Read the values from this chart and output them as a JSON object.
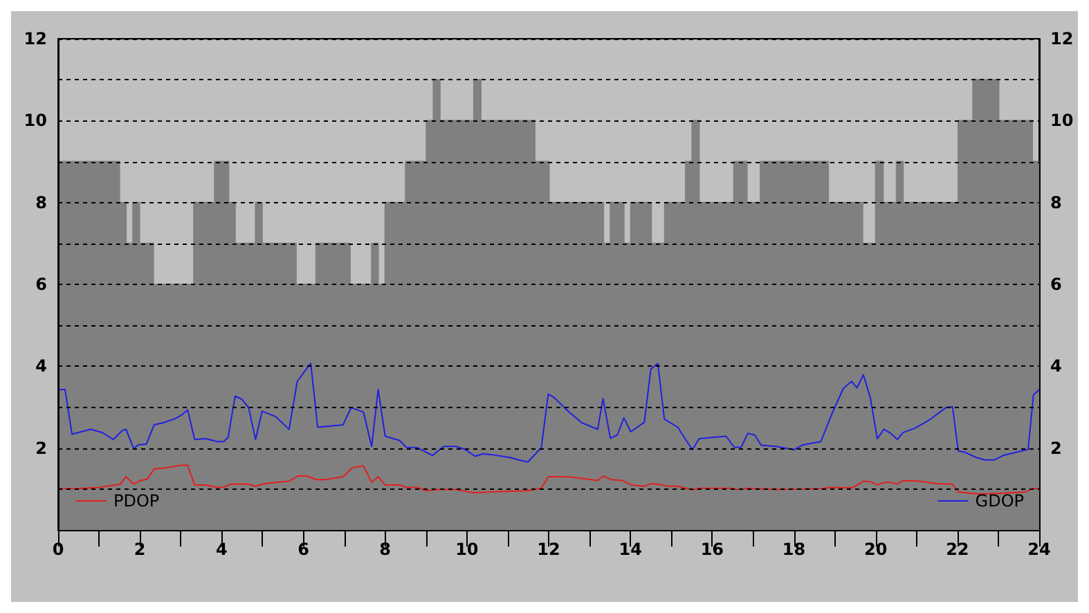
{
  "chart_data": {
    "type": "line",
    "xlim": [
      0,
      24
    ],
    "xticks": [
      0,
      {
        "value": 1,
        "label": null
      },
      2,
      {
        "value": 3,
        "label": null
      },
      4,
      {
        "value": 5,
        "label": null
      },
      6,
      {
        "value": 7,
        "label": null
      },
      8,
      {
        "value": 9,
        "label": null
      },
      10,
      {
        "value": 11,
        "label": null
      },
      12,
      {
        "value": 13,
        "label": null
      },
      14,
      {
        "value": 15,
        "label": null
      },
      16,
      {
        "value": 17,
        "label": null
      },
      18,
      {
        "value": 19,
        "label": null
      },
      20,
      {
        "value": 21,
        "label": null
      },
      22,
      {
        "value": 23,
        "label": null
      },
      24
    ],
    "ylim": [
      0,
      12
    ],
    "yticks": [
      {
        "value": 0,
        "label": null
      },
      {
        "value": 1,
        "label": null
      },
      2,
      {
        "value": 3,
        "label": null
      },
      4,
      {
        "value": 5,
        "label": null
      },
      6,
      {
        "value": 7,
        "label": null
      },
      8,
      {
        "value": 9,
        "label": null
      },
      10,
      {
        "value": 11,
        "label": null
      },
      12
    ],
    "y2lim": [
      0,
      12
    ],
    "y2ticks": [
      {
        "value": 0,
        "label": null
      },
      {
        "value": 1,
        "label": null
      },
      2,
      {
        "value": 3,
        "label": null
      },
      4,
      {
        "value": 5,
        "label": null
      },
      6,
      {
        "value": 7,
        "label": null
      },
      8,
      {
        "value": 9,
        "label": null
      },
      10,
      {
        "value": 11,
        "label": null
      },
      12
    ],
    "grid": "y",
    "legend": "bottom",
    "series": [
      {
        "type": "area",
        "color": "#808080",
        "x": [
          0,
          1.5,
          1.5,
          1.66,
          1.66,
          1.83,
          1.83,
          1.99,
          1.99,
          2.33,
          2.33,
          3.32,
          3.32,
          3.83,
          3.83,
          4.17,
          4.17,
          4.33,
          4.33,
          4.83,
          4.83,
          4.99,
          4.99,
          5.82,
          5.82,
          6.31,
          6.31,
          7.14,
          7.14,
          7.67,
          7.67,
          7.83,
          7.83,
          8.0,
          8.0,
          8.5,
          8.5,
          9.01,
          9.01,
          9.18,
          9.18,
          9.34,
          9.34,
          10.17,
          10.17,
          10.34,
          10.34,
          11.66,
          11.66,
          12.01,
          12.01,
          13.34,
          13.34,
          13.51,
          13.51,
          13.84,
          13.84,
          14.01,
          14.01,
          14.51,
          14.51,
          14.84,
          14.84,
          15.35,
          15.35,
          15.51,
          15.51,
          15.68,
          15.68,
          16.53,
          16.53,
          16.85,
          16.85,
          17.18,
          17.18,
          18.84,
          18.84,
          19.68,
          19.68,
          20.0,
          20.0,
          20.18,
          20.18,
          20.51,
          20.51,
          20.67,
          20.67,
          22.02,
          22.02,
          22.38,
          22.38,
          23.01,
          23.01,
          23.83,
          23.83,
          24
        ],
        "values": [
          9,
          9,
          8,
          8,
          7,
          7,
          8,
          8,
          7,
          7,
          6,
          6,
          8,
          8,
          9,
          9,
          8,
          8,
          7,
          7,
          8,
          8,
          7,
          7,
          6,
          6,
          7,
          7,
          6,
          6,
          7,
          7,
          6,
          6,
          8,
          8,
          9,
          9,
          10,
          10,
          11,
          11,
          10,
          10,
          11,
          11,
          10,
          10,
          9,
          9,
          8,
          8,
          7,
          7,
          8,
          8,
          7,
          7,
          8,
          8,
          7,
          7,
          8,
          8,
          9,
          9,
          10,
          10,
          8,
          8,
          9,
          9,
          8,
          8,
          9,
          9,
          8,
          8,
          7,
          7,
          9,
          9,
          8,
          8,
          9,
          9,
          8,
          8,
          10,
          10,
          11,
          11,
          10,
          10,
          9,
          9
        ]
      },
      {
        "name": "PDOP",
        "color": "#e02020",
        "x": [
          0,
          0.47,
          1.02,
          1.52,
          1.66,
          1.85,
          2.02,
          2.18,
          2.35,
          2.57,
          3.01,
          3.17,
          3.34,
          3.61,
          3.89,
          4.05,
          4.22,
          4.66,
          4.83,
          4.99,
          5.32,
          5.65,
          5.87,
          6.09,
          6.31,
          6.53,
          6.97,
          7.2,
          7.47,
          7.67,
          7.83,
          8.0,
          8.35,
          8.52,
          8.79,
          9.01,
          9.29,
          9.73,
          10.17,
          10.61,
          11.49,
          11.82,
          11.99,
          12.43,
          12.7,
          13.2,
          13.33,
          13.53,
          13.81,
          14.01,
          14.34,
          14.5,
          14.69,
          14.91,
          15.16,
          15.52,
          15.68,
          16.45,
          16.62,
          16.89,
          17.55,
          18.66,
          18.88,
          19.43,
          19.7,
          19.87,
          20.04,
          20.2,
          20.37,
          20.53,
          20.67,
          21.08,
          21.52,
          21.88,
          22.02,
          22.51,
          23.17,
          23.67,
          23.83,
          24
        ],
        "values": [
          1.01,
          1.01,
          1.04,
          1.12,
          1.3,
          1.12,
          1.21,
          1.24,
          1.49,
          1.51,
          1.58,
          1.58,
          1.1,
          1.1,
          1.04,
          1.04,
          1.12,
          1.12,
          1.07,
          1.12,
          1.16,
          1.19,
          1.32,
          1.32,
          1.23,
          1.23,
          1.3,
          1.52,
          1.57,
          1.16,
          1.3,
          1.1,
          1.1,
          1.04,
          1.04,
          0.96,
          0.99,
          0.99,
          0.91,
          0.93,
          0.96,
          1.02,
          1.3,
          1.3,
          1.27,
          1.21,
          1.32,
          1.23,
          1.21,
          1.1,
          1.07,
          1.13,
          1.12,
          1.07,
          1.07,
          0.98,
          1.02,
          1.02,
          0.99,
          1.02,
          0.99,
          1.01,
          1.04,
          1.03,
          1.19,
          1.18,
          1.1,
          1.16,
          1.16,
          1.12,
          1.21,
          1.19,
          1.13,
          1.12,
          0.93,
          0.88,
          0.9,
          0.93,
          1.01,
          1.01
        ]
      },
      {
        "name": "GDOP",
        "color": "#2020e0",
        "x": [
          0,
          0.17,
          0.34,
          0.8,
          1.08,
          1.35,
          1.57,
          1.66,
          1.85,
          1.96,
          2.16,
          2.35,
          2.57,
          2.84,
          3.01,
          3.17,
          3.34,
          3.61,
          3.89,
          4.05,
          4.16,
          4.33,
          4.5,
          4.66,
          4.83,
          4.99,
          5.32,
          5.65,
          5.85,
          6.02,
          6.18,
          6.35,
          6.97,
          7.17,
          7.47,
          7.67,
          7.83,
          8.0,
          8.35,
          8.52,
          8.79,
          9.16,
          9.43,
          9.73,
          9.95,
          10.2,
          10.39,
          10.61,
          11.05,
          11.27,
          11.49,
          11.82,
          11.99,
          12.14,
          12.48,
          12.81,
          13.2,
          13.33,
          13.51,
          13.68,
          13.84,
          14.01,
          14.34,
          14.5,
          14.67,
          14.83,
          15.16,
          15.35,
          15.52,
          15.68,
          16.34,
          16.54,
          16.71,
          16.87,
          17.04,
          17.2,
          17.56,
          18.0,
          18.22,
          18.66,
          18.93,
          19.21,
          19.41,
          19.54,
          19.7,
          19.87,
          20.04,
          20.2,
          20.37,
          20.53,
          20.67,
          20.97,
          21.3,
          21.72,
          21.88,
          22.02,
          22.18,
          22.46,
          22.68,
          22.9,
          23.12,
          23.73,
          23.86,
          24
        ],
        "values": [
          3.43,
          3.43,
          2.34,
          2.46,
          2.38,
          2.21,
          2.43,
          2.46,
          1.99,
          2.08,
          2.1,
          2.57,
          2.62,
          2.71,
          2.8,
          2.93,
          2.21,
          2.23,
          2.16,
          2.16,
          2.27,
          3.27,
          3.19,
          2.99,
          2.21,
          2.9,
          2.77,
          2.46,
          3.63,
          3.86,
          4.07,
          2.51,
          2.57,
          2.99,
          2.88,
          2.04,
          3.43,
          2.29,
          2.19,
          2.02,
          2.01,
          1.82,
          2.04,
          2.04,
          1.97,
          1.8,
          1.86,
          1.84,
          1.77,
          1.71,
          1.66,
          2.01,
          3.32,
          3.23,
          2.9,
          2.62,
          2.46,
          3.21,
          2.24,
          2.32,
          2.74,
          2.4,
          2.63,
          3.93,
          4.07,
          2.71,
          2.51,
          2.21,
          1.96,
          2.23,
          2.29,
          2.02,
          2.02,
          2.36,
          2.32,
          2.07,
          2.04,
          1.96,
          2.08,
          2.16,
          2.84,
          3.46,
          3.63,
          3.47,
          3.79,
          3.23,
          2.23,
          2.46,
          2.36,
          2.21,
          2.38,
          2.49,
          2.68,
          2.99,
          3.01,
          1.93,
          1.9,
          1.77,
          1.71,
          1.71,
          1.82,
          1.97,
          3.3,
          3.43
        ]
      }
    ]
  }
}
